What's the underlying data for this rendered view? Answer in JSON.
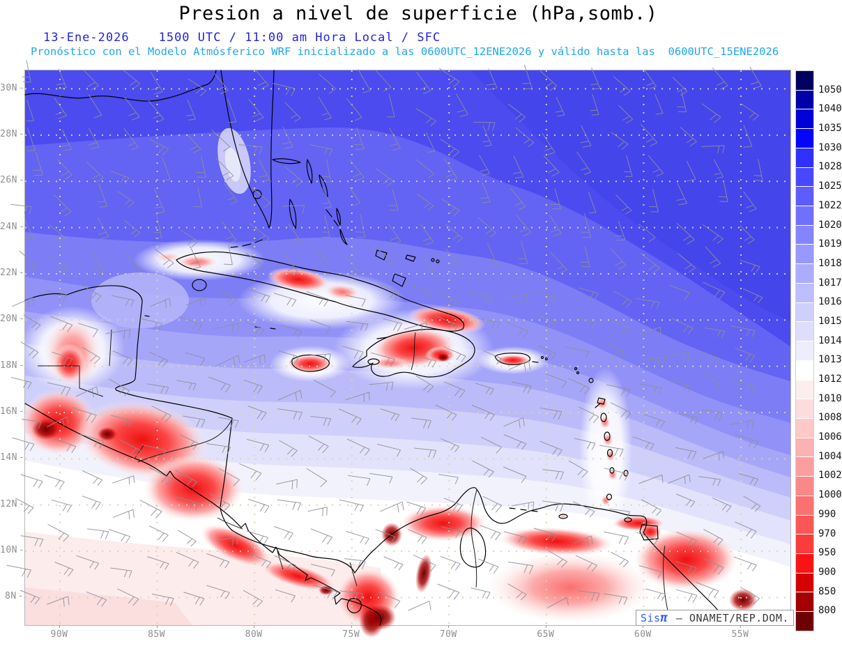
{
  "header": {
    "title": "Presion a nivel de superficie (hPa,somb.)",
    "date": "13-Ene-2026",
    "time_line": "1500 UTC / 11:00 am Hora Local / SFC",
    "model_line": "Pronóstico con el Modelo Atmósferico WRF inicializado a las 0600UTC_12ENE2026 y válido hasta las  0600UTC_15ENE2026"
  },
  "map": {
    "lat_labels": [
      "30N",
      "28N",
      "26N",
      "24N",
      "22N",
      "20N",
      "18N",
      "16N",
      "14N",
      "12N",
      "10N",
      "8N"
    ],
    "lon_labels": [
      "90W",
      "85W",
      "80W",
      "75W",
      "70W",
      "65W",
      "60W",
      "55W"
    ]
  },
  "colorbar": {
    "unit": "hPa",
    "labels": [
      "1050",
      "1040",
      "1035",
      "1030",
      "1028",
      "1025",
      "1022",
      "1020",
      "1019",
      "1018",
      "1017",
      "1016",
      "1015",
      "1014",
      "1013",
      "1012",
      "1010",
      "1008",
      "1006",
      "1004",
      "1002",
      "1000",
      "990",
      "970",
      "950",
      "900",
      "850",
      "800"
    ],
    "colors": [
      "#000060",
      "#0000a8",
      "#0000d8",
      "#0404ff",
      "#3030ff",
      "#4848ff",
      "#5d5dff",
      "#7070ff",
      "#8484ff",
      "#9898ff",
      "#acacff",
      "#bebeff",
      "#cfcfff",
      "#dedefc",
      "#ededfb",
      "#ffffff",
      "#fdeeee",
      "#fcdcdc",
      "#fcc8c8",
      "#fcb2b2",
      "#fc9e9e",
      "#fb8888",
      "#fb7070",
      "#fb5656",
      "#fb3c3c",
      "#f81414",
      "#d60000",
      "#a40000",
      "#6f0000"
    ]
  },
  "branding": {
    "logo_prefix": "Sis",
    "logo_symbol": "π",
    "credit": " – ONAMET/REP.DOM."
  },
  "palette": {
    "title_color": "#000000",
    "date_color": "#2323dd",
    "model_color": "#1ea7f2",
    "axis_label_color": "#8f8f8f",
    "barb_color": "#8f8f98",
    "grid_dot_color": "#d8d5b2"
  }
}
